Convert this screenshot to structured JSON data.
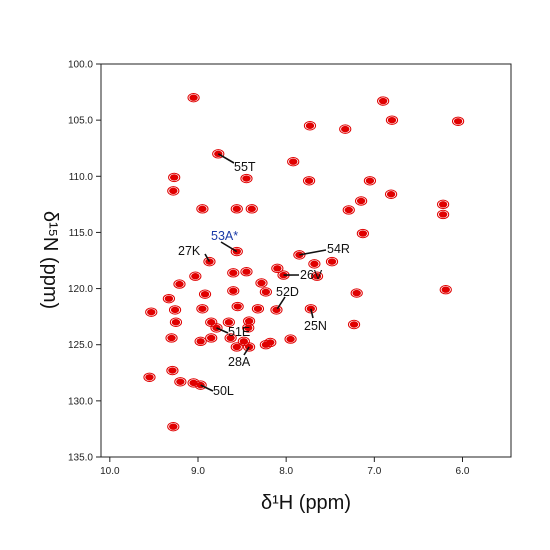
{
  "chart_data": {
    "type": "scatter",
    "title": "",
    "xlabel": "δ¹H (ppm)",
    "ylabel": "δ¹⁵N (ppm)",
    "xlim": [
      10.1,
      5.45
    ],
    "ylim": [
      100.0,
      135.0
    ],
    "x_ticks": [
      "10.0",
      "9.0",
      "8.0",
      "7.0",
      "6.0"
    ],
    "y_ticks": [
      "100.0",
      "105.0",
      "110.0",
      "115.0",
      "120.0",
      "125.0",
      "130.0",
      "135.0"
    ],
    "grid": false,
    "peak_color": "#e00000",
    "peaks": [
      [
        9.05,
        103.0
      ],
      [
        7.73,
        105.5
      ],
      [
        7.33,
        105.8
      ],
      [
        6.9,
        103.3
      ],
      [
        6.8,
        105.0
      ],
      [
        6.05,
        105.1
      ],
      [
        8.77,
        108.0
      ],
      [
        7.92,
        108.7
      ],
      [
        9.27,
        110.1
      ],
      [
        8.45,
        110.2
      ],
      [
        7.74,
        110.4
      ],
      [
        7.05,
        110.4
      ],
      [
        9.28,
        111.3
      ],
      [
        6.81,
        111.6
      ],
      [
        8.95,
        112.9
      ],
      [
        8.56,
        112.9
      ],
      [
        8.39,
        112.9
      ],
      [
        7.29,
        113.0
      ],
      [
        7.15,
        112.2
      ],
      [
        6.22,
        112.5
      ],
      [
        6.22,
        113.4
      ],
      [
        7.13,
        115.1
      ],
      [
        8.56,
        116.7
      ],
      [
        7.85,
        117.0
      ],
      [
        7.68,
        117.8
      ],
      [
        7.48,
        117.6
      ],
      [
        8.87,
        117.6
      ],
      [
        9.03,
        118.9
      ],
      [
        8.6,
        118.6
      ],
      [
        8.45,
        118.5
      ],
      [
        8.1,
        118.2
      ],
      [
        8.03,
        118.8
      ],
      [
        9.21,
        119.6
      ],
      [
        8.28,
        119.5
      ],
      [
        7.65,
        118.9
      ],
      [
        9.33,
        120.9
      ],
      [
        8.92,
        120.5
      ],
      [
        8.6,
        120.2
      ],
      [
        8.23,
        120.3
      ],
      [
        6.19,
        120.1
      ],
      [
        7.2,
        120.4
      ],
      [
        9.26,
        121.9
      ],
      [
        9.53,
        122.1
      ],
      [
        9.25,
        123.0
      ],
      [
        8.95,
        121.8
      ],
      [
        8.55,
        121.6
      ],
      [
        8.32,
        121.8
      ],
      [
        8.11,
        121.9
      ],
      [
        7.72,
        121.8
      ],
      [
        8.85,
        123.0
      ],
      [
        8.65,
        123.0
      ],
      [
        8.42,
        122.9
      ],
      [
        8.79,
        123.5
      ],
      [
        8.43,
        123.5
      ],
      [
        7.23,
        123.2
      ],
      [
        9.3,
        124.4
      ],
      [
        8.85,
        124.4
      ],
      [
        8.63,
        124.4
      ],
      [
        8.48,
        124.7
      ],
      [
        8.18,
        124.8
      ],
      [
        8.56,
        125.2
      ],
      [
        8.42,
        125.2
      ],
      [
        8.23,
        125.0
      ],
      [
        7.95,
        124.5
      ],
      [
        8.97,
        124.7
      ],
      [
        9.55,
        127.9
      ],
      [
        9.29,
        127.3
      ],
      [
        9.2,
        128.3
      ],
      [
        8.97,
        128.6
      ],
      [
        9.05,
        128.4
      ],
      [
        9.28,
        132.3
      ]
    ],
    "annotations": [
      {
        "text": "55T",
        "x": 8.77,
        "y": 108.0,
        "color": "#111111"
      },
      {
        "text": "53A*",
        "x": 8.56,
        "y": 116.7,
        "color": "#1a3aa8"
      },
      {
        "text": "27K",
        "x": 8.87,
        "y": 117.6,
        "color": "#111111"
      },
      {
        "text": "54R",
        "x": 7.85,
        "y": 117.0,
        "color": "#111111"
      },
      {
        "text": "26V",
        "x": 8.03,
        "y": 118.8,
        "color": "#111111"
      },
      {
        "text": "52D",
        "x": 8.1,
        "y": 121.8,
        "color": "#111111"
      },
      {
        "text": "25N",
        "x": 7.72,
        "y": 121.8,
        "color": "#111111"
      },
      {
        "text": "51E",
        "x": 8.79,
        "y": 123.5,
        "color": "#111111"
      },
      {
        "text": "28A",
        "x": 8.42,
        "y": 125.2,
        "color": "#111111"
      },
      {
        "text": "50L",
        "x": 8.97,
        "y": 128.6,
        "color": "#111111"
      }
    ]
  }
}
